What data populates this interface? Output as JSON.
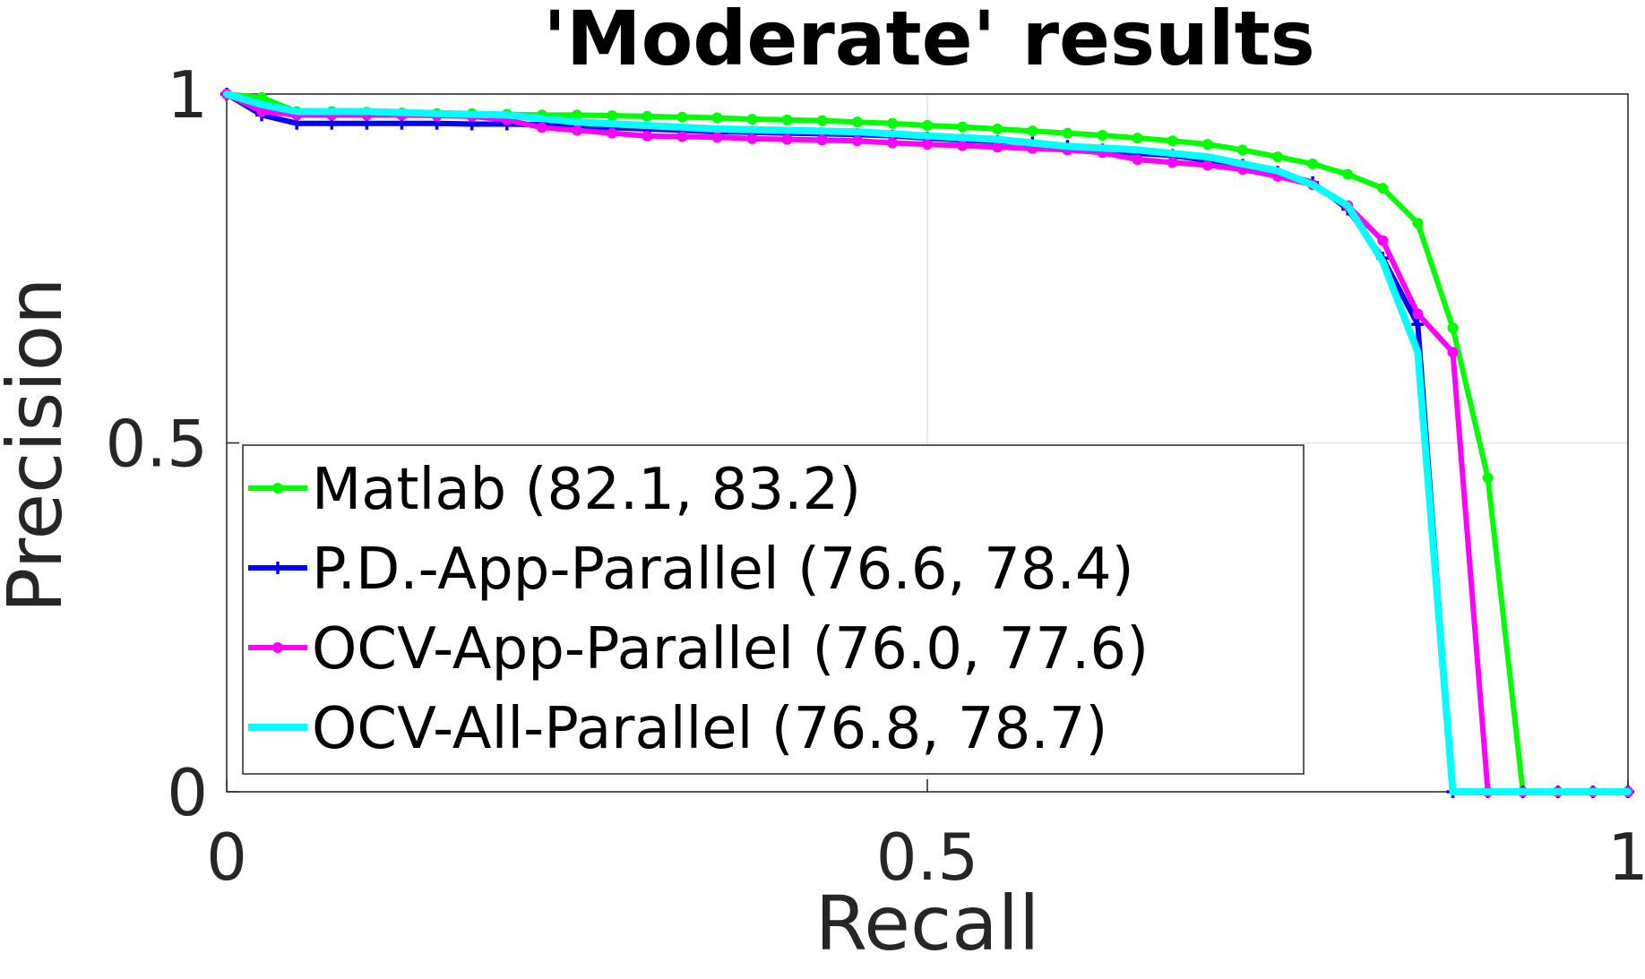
{
  "chart_data": {
    "type": "line",
    "title": "'Moderate' results",
    "xlabel": "Recall",
    "ylabel": "Precision",
    "xlim": [
      0,
      1
    ],
    "ylim": [
      0,
      1
    ],
    "xticks": [
      {
        "value": 0,
        "label": "0"
      },
      {
        "value": 0.5,
        "label": "0.5"
      },
      {
        "value": 1,
        "label": "1"
      }
    ],
    "yticks": [
      {
        "value": 0,
        "label": "0"
      },
      {
        "value": 0.5,
        "label": "0.5"
      },
      {
        "value": 1,
        "label": "1"
      }
    ],
    "grid": true,
    "legend_position": "bottom-left",
    "series": [
      {
        "name": "Matlab (82.1, 83.2)",
        "color": "#00ff00",
        "marker": "dot",
        "x": [
          0,
          0.025,
          0.05,
          0.075,
          0.1,
          0.125,
          0.15,
          0.175,
          0.2,
          0.225,
          0.25,
          0.275,
          0.3,
          0.325,
          0.35,
          0.375,
          0.4,
          0.425,
          0.45,
          0.475,
          0.5,
          0.525,
          0.55,
          0.575,
          0.6,
          0.625,
          0.65,
          0.675,
          0.7,
          0.725,
          0.75,
          0.775,
          0.8,
          0.825,
          0.85,
          0.875,
          0.9,
          0.925,
          0.95,
          0.975,
          1
        ],
        "y": [
          1,
          0.995,
          0.975,
          0.975,
          0.974,
          0.973,
          0.972,
          0.972,
          0.971,
          0.97,
          0.97,
          0.969,
          0.968,
          0.967,
          0.966,
          0.964,
          0.963,
          0.962,
          0.96,
          0.958,
          0.955,
          0.953,
          0.95,
          0.947,
          0.944,
          0.941,
          0.937,
          0.933,
          0.928,
          0.92,
          0.91,
          0.9,
          0.885,
          0.865,
          0.815,
          0.665,
          0.45,
          0,
          0,
          0,
          0
        ]
      },
      {
        "name": "P.D.-App-Parallel (76.6, 78.4)",
        "color": "#0000ff",
        "marker": "plus",
        "x": [
          0,
          0.025,
          0.05,
          0.075,
          0.1,
          0.125,
          0.15,
          0.175,
          0.2,
          0.225,
          0.25,
          0.275,
          0.3,
          0.325,
          0.35,
          0.375,
          0.4,
          0.425,
          0.45,
          0.475,
          0.5,
          0.525,
          0.55,
          0.575,
          0.6,
          0.625,
          0.65,
          0.675,
          0.7,
          0.725,
          0.75,
          0.775,
          0.8,
          0.825,
          0.85,
          0.875,
          0.9,
          0.925,
          0.95,
          0.975,
          1
        ],
        "y": [
          1,
          0.97,
          0.958,
          0.958,
          0.958,
          0.958,
          0.958,
          0.957,
          0.957,
          0.956,
          0.955,
          0.952,
          0.95,
          0.948,
          0.946,
          0.945,
          0.944,
          0.943,
          0.942,
          0.94,
          0.937,
          0.934,
          0.932,
          0.93,
          0.925,
          0.92,
          0.915,
          0.912,
          0.905,
          0.898,
          0.888,
          0.873,
          0.835,
          0.765,
          0.67,
          0,
          0,
          0,
          0,
          0,
          0
        ]
      },
      {
        "name": "OCV-App-Parallel (76.0, 77.6)",
        "color": "#ff00ff",
        "marker": "dot",
        "x": [
          0,
          0.025,
          0.05,
          0.075,
          0.1,
          0.125,
          0.15,
          0.175,
          0.2,
          0.225,
          0.25,
          0.275,
          0.3,
          0.325,
          0.35,
          0.375,
          0.4,
          0.425,
          0.45,
          0.475,
          0.5,
          0.525,
          0.55,
          0.575,
          0.6,
          0.625,
          0.65,
          0.675,
          0.7,
          0.725,
          0.75,
          0.775,
          0.8,
          0.825,
          0.85,
          0.875,
          0.9,
          0.925,
          0.95,
          0.975,
          1
        ],
        "y": [
          1,
          0.975,
          0.97,
          0.97,
          0.97,
          0.97,
          0.969,
          0.968,
          0.963,
          0.952,
          0.948,
          0.944,
          0.94,
          0.939,
          0.938,
          0.936,
          0.935,
          0.934,
          0.933,
          0.93,
          0.928,
          0.926,
          0.924,
          0.922,
          0.92,
          0.916,
          0.906,
          0.902,
          0.898,
          0.892,
          0.882,
          0.87,
          0.84,
          0.79,
          0.685,
          0.63,
          0,
          0,
          0,
          0,
          0
        ]
      },
      {
        "name": "OCV-All-Parallel (76.8, 78.7)",
        "color": "#00ffff",
        "marker": "none",
        "x": [
          0,
          0.025,
          0.05,
          0.1,
          0.15,
          0.2,
          0.25,
          0.3,
          0.35,
          0.4,
          0.45,
          0.5,
          0.55,
          0.6,
          0.65,
          0.7,
          0.75,
          0.775,
          0.8,
          0.825,
          0.85,
          0.875,
          1
        ],
        "y": [
          1,
          0.985,
          0.975,
          0.975,
          0.972,
          0.97,
          0.96,
          0.955,
          0.95,
          0.948,
          0.946,
          0.94,
          0.935,
          0.925,
          0.92,
          0.91,
          0.89,
          0.87,
          0.84,
          0.76,
          0.63,
          0,
          0
        ]
      }
    ]
  }
}
